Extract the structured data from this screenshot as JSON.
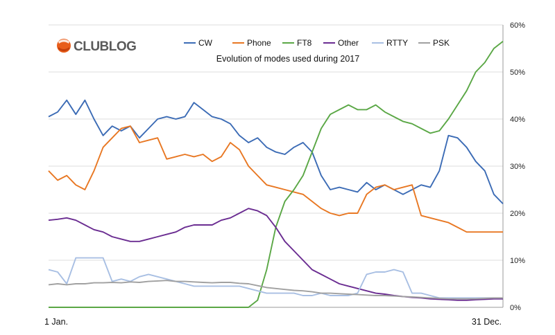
{
  "logo": {
    "text": "CLUBLOG",
    "color": "#5a5a5a",
    "mark_color": "#e85d1a"
  },
  "chart_data": {
    "type": "line",
    "title": "Evolution of modes used during 2017",
    "xlabel": "",
    "ylabel": "",
    "x_tick_labels": [
      "1 Jan.",
      "31 Dec."
    ],
    "x": [
      0,
      0.02,
      0.04,
      0.06,
      0.08,
      0.1,
      0.12,
      0.14,
      0.16,
      0.18,
      0.2,
      0.22,
      0.24,
      0.26,
      0.28,
      0.3,
      0.32,
      0.34,
      0.36,
      0.38,
      0.4,
      0.42,
      0.44,
      0.46,
      0.48,
      0.5,
      0.52,
      0.54,
      0.56,
      0.58,
      0.6,
      0.62,
      0.64,
      0.66,
      0.68,
      0.7,
      0.72,
      0.74,
      0.76,
      0.78,
      0.8,
      0.82,
      0.84,
      0.86,
      0.88,
      0.9,
      0.92,
      0.94,
      0.96,
      0.98,
      1.0
    ],
    "ylim": [
      0,
      60
    ],
    "y_ticks": [
      0,
      10,
      20,
      30,
      40,
      50,
      60
    ],
    "y_tick_labels": [
      "0%",
      "10%",
      "20%",
      "30%",
      "40%",
      "50%",
      "60%"
    ],
    "y_axis_side": "right",
    "grid": true,
    "legend_position": "top",
    "series": [
      {
        "name": "CW",
        "color": "#3b6bb5",
        "values": [
          40.5,
          41.5,
          44,
          41,
          44,
          40,
          36.5,
          38.5,
          37.5,
          38.5,
          36,
          38,
          40,
          40.5,
          40,
          40.5,
          43.5,
          42,
          40.5,
          40,
          39,
          36.5,
          35,
          36,
          34,
          33,
          32.5,
          34,
          35,
          33,
          28,
          25,
          25.5,
          25,
          24.5,
          26.5,
          25,
          26,
          25,
          24,
          25,
          26,
          25.5,
          29,
          36.5,
          36,
          34,
          31,
          29,
          24,
          22
        ]
      },
      {
        "name": "Phone",
        "color": "#e87722",
        "values": [
          29,
          27,
          28,
          26,
          25,
          29,
          34,
          36,
          38,
          38.5,
          35,
          35.5,
          36,
          31.5,
          32,
          32.5,
          32,
          32.5,
          31,
          32,
          35,
          33.5,
          30,
          28,
          26,
          25.5,
          25,
          24.5,
          24,
          22.5,
          21,
          20,
          19.5,
          20,
          20,
          24,
          25.5,
          26,
          25,
          25.5,
          26,
          19.5,
          19,
          18.5,
          18,
          17,
          16,
          16,
          16,
          16,
          16
        ]
      },
      {
        "name": "FT8",
        "color": "#5aa745",
        "values": [
          0,
          0,
          0,
          0,
          0,
          0,
          0,
          0,
          0,
          0,
          0,
          0,
          0,
          0,
          0,
          0,
          0,
          0,
          0,
          0,
          0,
          0,
          0,
          1.5,
          8,
          17,
          22.5,
          25,
          28,
          33,
          38,
          41,
          42,
          43,
          42,
          42,
          43,
          41.5,
          40.5,
          39.5,
          39,
          38,
          37,
          37.5,
          40,
          43,
          46,
          50,
          52,
          55,
          56.5
        ]
      },
      {
        "name": "Other",
        "color": "#6a2c91",
        "values": [
          18.5,
          18.7,
          19,
          18.5,
          17.5,
          16.5,
          16,
          15,
          14.5,
          14,
          14,
          14.5,
          15,
          15.5,
          16,
          17,
          17.5,
          17.5,
          17.5,
          18.5,
          19,
          20,
          21,
          20.5,
          19.5,
          17,
          14,
          12,
          10,
          8,
          7,
          6,
          5,
          4.5,
          4,
          3.5,
          3,
          2.8,
          2.5,
          2.3,
          2.1,
          2,
          1.8,
          1.7,
          1.6,
          1.5,
          1.5,
          1.6,
          1.7,
          1.8,
          1.8
        ]
      },
      {
        "name": "RTTY",
        "color": "#a8bfe3",
        "values": [
          8,
          7.5,
          5,
          10.5,
          10.5,
          10.5,
          10.5,
          5.5,
          6,
          5.5,
          6.5,
          7,
          6.5,
          6,
          5.5,
          5,
          4.5,
          4.5,
          4.5,
          4.5,
          4.5,
          4.5,
          4,
          3.5,
          3,
          3,
          3,
          3,
          2.5,
          2.5,
          3,
          2.5,
          2.5,
          2.5,
          3,
          7,
          7.5,
          7.5,
          8,
          7.5,
          3,
          3,
          2.5,
          2,
          2,
          2,
          2,
          2,
          2,
          2,
          2
        ]
      },
      {
        "name": "PSK",
        "color": "#a0a0a0",
        "values": [
          4.8,
          5,
          4.8,
          5,
          5,
          5.2,
          5.2,
          5.3,
          5.2,
          5.4,
          5.3,
          5.5,
          5.6,
          5.7,
          5.5,
          5.5,
          5.4,
          5.3,
          5.2,
          5.3,
          5.3,
          5.1,
          5,
          4.6,
          4.2,
          4,
          3.8,
          3.6,
          3.5,
          3.3,
          3,
          3,
          2.9,
          2.8,
          2.7,
          2.6,
          2.5,
          2.5,
          2.4,
          2.3,
          2.2,
          2.1,
          2,
          1.9,
          1.8,
          1.8,
          1.8,
          1.8,
          1.9,
          2,
          2
        ]
      }
    ]
  }
}
